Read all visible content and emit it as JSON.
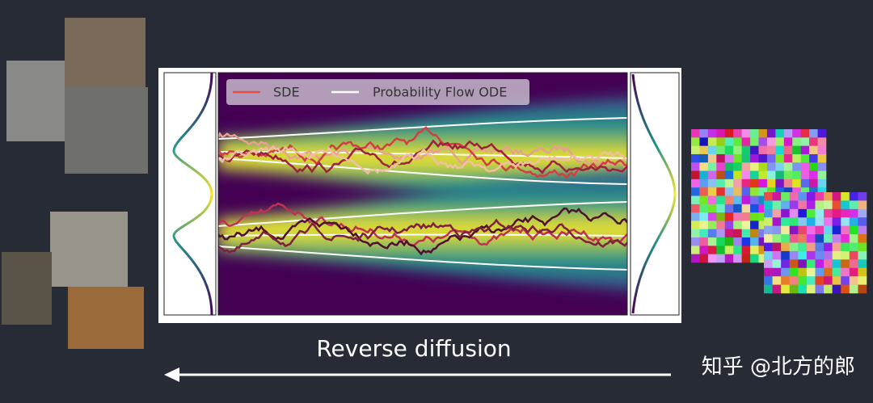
{
  "legend": {
    "items": [
      "SDE",
      "Probability Flow ODE"
    ]
  },
  "caption": "Reverse diffusion",
  "watermark": "知乎 @北方的郎"
}
